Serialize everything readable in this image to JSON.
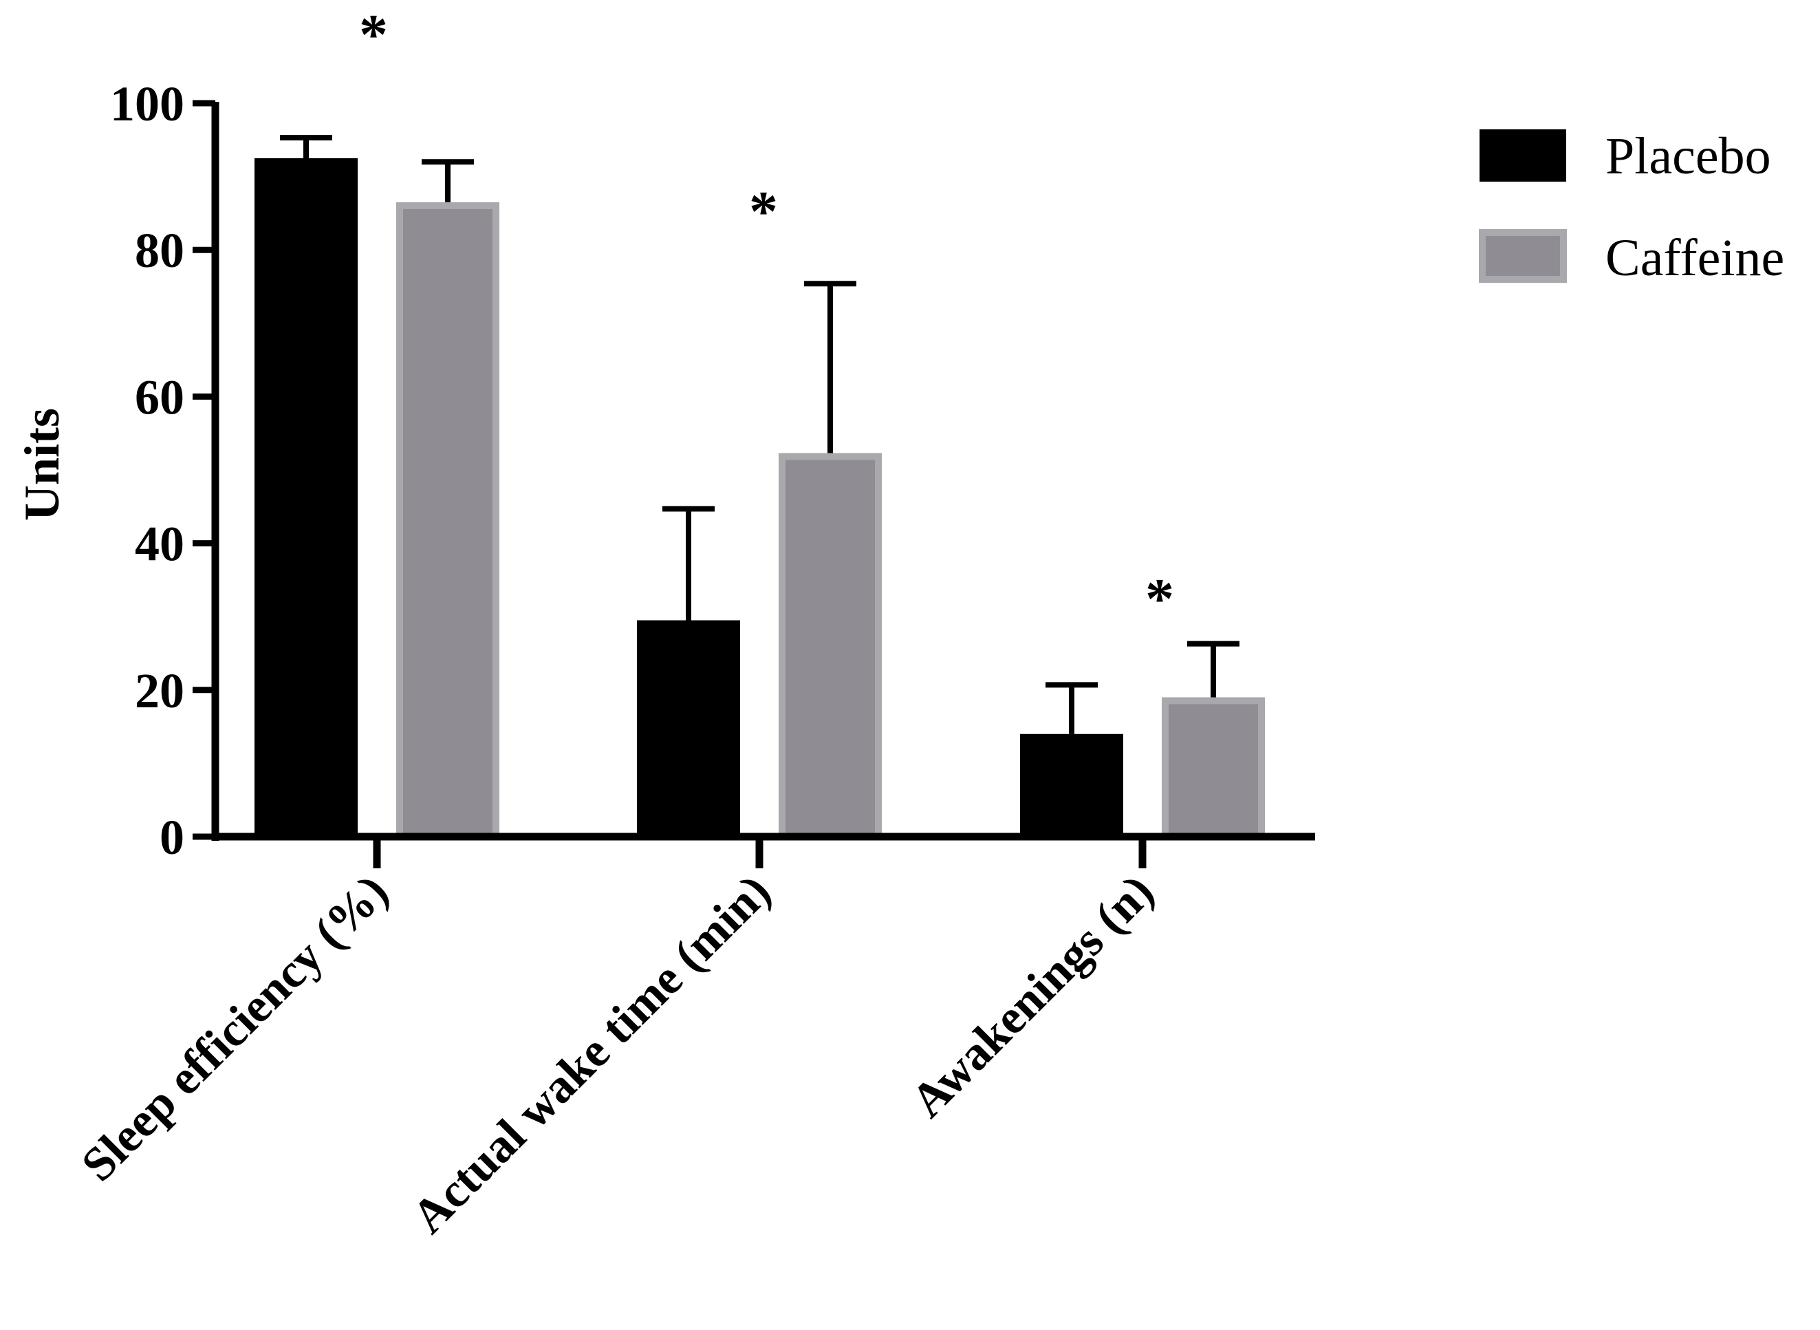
{
  "chart_data": {
    "type": "bar",
    "title": "",
    "ylabel": "Units",
    "xlabel": "",
    "categories": [
      "Sleep efficiency (%)",
      "Actual wake time (min)",
      "Awakenings (n)"
    ],
    "series": [
      {
        "name": "Placebo",
        "values": [
          92.5,
          29.5,
          14
        ],
        "errors": [
          2.8,
          15.2,
          6.7
        ],
        "color": "#000000"
      },
      {
        "name": "Caffeine",
        "values": [
          86.5,
          52.3,
          19
        ],
        "errors": [
          5.5,
          23.1,
          7.3
        ],
        "color": "#8f8d93",
        "edge": "#a9a8ad"
      }
    ],
    "ylim": [
      0,
      100
    ],
    "yticks": [
      "0",
      "20",
      "40",
      "60",
      "80",
      "100"
    ],
    "annotations": [
      {
        "category": "Sleep efficiency (%)",
        "text": "*"
      },
      {
        "category": "Actual wake time (min)",
        "text": "*"
      },
      {
        "category": "Awakenings (n)",
        "text": "*"
      }
    ],
    "legend_position": "top-right",
    "grid": false
  }
}
